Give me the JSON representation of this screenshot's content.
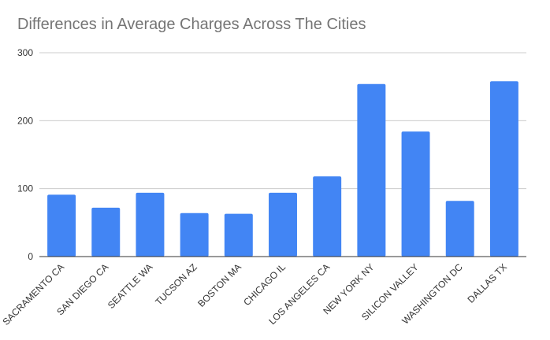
{
  "chart_data": {
    "type": "bar",
    "title": "Differences in Average Charges Across The Cities",
    "categories": [
      "SACRAMENTO CA",
      "SAN DIEGO CA",
      "SEATTLE WA",
      "TUCSON AZ",
      "BOSTON MA",
      "CHICAGO IL",
      "LOS ANGELES CA",
      "NEW YORK NY",
      "SILICON VALLEY",
      "WASHINGTON DC",
      "DALLAS TX"
    ],
    "values": [
      91,
      72,
      94,
      64,
      63,
      94,
      118,
      254,
      184,
      82,
      258
    ],
    "ylim": [
      0,
      300
    ],
    "yticks": [
      0,
      100,
      200,
      300
    ],
    "grid": true,
    "xlabel": "",
    "ylabel": "",
    "bar_color": "#4285f4",
    "grid_color": "#cccccc",
    "axis_color": "#333333",
    "title_color": "#757575"
  }
}
